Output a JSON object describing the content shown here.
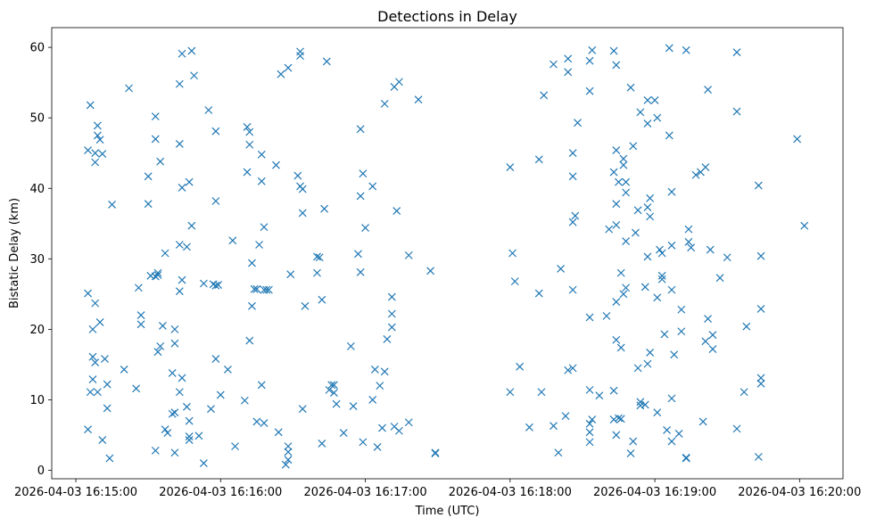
{
  "chart_data": {
    "type": "scatter",
    "title": "Detections in Delay",
    "xlabel": "Time (UTC)",
    "ylabel": "Bistatic Delay (km)",
    "x_format": "YYYY-MM-DD HH:MM:SS",
    "x_ticks": [
      "2026-04-03 16:15:00",
      "2026-04-03 16:16:00",
      "2026-04-03 16:17:00",
      "2026-04-03 16:18:00",
      "2026-04-03 16:19:00",
      "2026-04-03 16:20:00"
    ],
    "xlim": [
      "2026-04-03 16:14:50",
      "2026-04-03 16:20:18"
    ],
    "y_ticks": [
      0,
      10,
      20,
      30,
      40,
      50,
      60
    ],
    "ylim": [
      -1.2,
      62.8
    ],
    "grid": false,
    "legend": "none",
    "marker": "x",
    "color": "#1f77b4",
    "points": [
      [
        "2026-04-03 16:15:05",
        45.4
      ],
      [
        "2026-04-03 16:15:06",
        51.8
      ],
      [
        "2026-04-03 16:15:08",
        45.0
      ],
      [
        "2026-04-03 16:15:08",
        43.7
      ],
      [
        "2026-04-03 16:15:09",
        48.9
      ],
      [
        "2026-04-03 16:15:09",
        47.5
      ],
      [
        "2026-04-03 16:15:10",
        46.9
      ],
      [
        "2026-04-03 16:15:11",
        44.9
      ],
      [
        "2026-04-03 16:15:05",
        25.1
      ],
      [
        "2026-04-03 16:15:07",
        20.0
      ],
      [
        "2026-04-03 16:15:08",
        23.7
      ],
      [
        "2026-04-03 16:15:10",
        21.0
      ],
      [
        "2026-04-03 16:15:07",
        16.1
      ],
      [
        "2026-04-03 16:15:08",
        15.3
      ],
      [
        "2026-04-03 16:15:07",
        12.9
      ],
      [
        "2026-04-03 16:15:06",
        11.1
      ],
      [
        "2026-04-03 16:15:09",
        11.1
      ],
      [
        "2026-04-03 16:15:05",
        5.8
      ],
      [
        "2026-04-03 16:15:11",
        4.3
      ],
      [
        "2026-04-03 16:15:12",
        15.8
      ],
      [
        "2026-04-03 16:15:13",
        12.2
      ],
      [
        "2026-04-03 16:15:13",
        8.8
      ],
      [
        "2026-04-03 16:15:14",
        1.7
      ],
      [
        "2026-04-03 16:15:15",
        37.7
      ],
      [
        "2026-04-03 16:15:20",
        14.3
      ],
      [
        "2026-04-03 16:15:22",
        54.2
      ],
      [
        "2026-04-03 16:15:25",
        11.6
      ],
      [
        "2026-04-03 16:15:26",
        25.9
      ],
      [
        "2026-04-03 16:15:27",
        22.0
      ],
      [
        "2026-04-03 16:15:27",
        20.7
      ],
      [
        "2026-04-03 16:15:30",
        41.7
      ],
      [
        "2026-04-03 16:15:30",
        37.8
      ],
      [
        "2026-04-03 16:15:31",
        27.6
      ],
      [
        "2026-04-03 16:15:33",
        50.2
      ],
      [
        "2026-04-03 16:15:33",
        47.0
      ],
      [
        "2026-04-03 16:15:33",
        27.5
      ],
      [
        "2026-04-03 16:15:34",
        28.0
      ],
      [
        "2026-04-03 16:15:34",
        27.7
      ],
      [
        "2026-04-03 16:15:34",
        16.8
      ],
      [
        "2026-04-03 16:15:33",
        2.8
      ],
      [
        "2026-04-03 16:15:35",
        43.8
      ],
      [
        "2026-04-03 16:15:35",
        17.6
      ],
      [
        "2026-04-03 16:15:36",
        20.5
      ],
      [
        "2026-04-03 16:15:37",
        30.8
      ],
      [
        "2026-04-03 16:15:37",
        5.8
      ],
      [
        "2026-04-03 16:15:38",
        5.3
      ],
      [
        "2026-04-03 16:15:40",
        13.8
      ],
      [
        "2026-04-03 16:15:40",
        8.0
      ],
      [
        "2026-04-03 16:15:41",
        8.2
      ],
      [
        "2026-04-03 16:15:41",
        20.0
      ],
      [
        "2026-04-03 16:15:41",
        18.0
      ],
      [
        "2026-04-03 16:15:41",
        2.5
      ],
      [
        "2026-04-03 16:15:44",
        59.1
      ],
      [
        "2026-04-03 16:15:43",
        54.8
      ],
      [
        "2026-04-03 16:15:43",
        46.3
      ],
      [
        "2026-04-03 16:15:44",
        40.1
      ],
      [
        "2026-04-03 16:15:43",
        32.0
      ],
      [
        "2026-04-03 16:15:44",
        27.0
      ],
      [
        "2026-04-03 16:15:43",
        25.4
      ],
      [
        "2026-04-03 16:15:44",
        13.1
      ],
      [
        "2026-04-03 16:15:43",
        11.1
      ],
      [
        "2026-04-03 16:15:46",
        9.0
      ],
      [
        "2026-04-03 16:15:47",
        7.0
      ],
      [
        "2026-04-03 16:15:47",
        4.8
      ],
      [
        "2026-04-03 16:15:47",
        4.3
      ],
      [
        "2026-04-03 16:15:48",
        59.5
      ],
      [
        "2026-04-03 16:15:49",
        56.0
      ],
      [
        "2026-04-03 16:15:47",
        40.9
      ],
      [
        "2026-04-03 16:15:48",
        34.7
      ],
      [
        "2026-04-03 16:15:46",
        31.7
      ],
      [
        "2026-04-03 16:15:51",
        4.9
      ],
      [
        "2026-04-03 16:15:53",
        26.5
      ],
      [
        "2026-04-03 16:15:53",
        1.0
      ],
      [
        "2026-04-03 16:15:55",
        51.1
      ],
      [
        "2026-04-03 16:15:56",
        8.7
      ],
      [
        "2026-04-03 16:15:58",
        48.1
      ],
      [
        "2026-04-03 16:15:58",
        38.2
      ],
      [
        "2026-04-03 16:15:57",
        26.4
      ],
      [
        "2026-04-03 16:15:58",
        26.2
      ],
      [
        "2026-04-03 16:15:59",
        26.3
      ],
      [
        "2026-04-03 16:15:58",
        15.8
      ],
      [
        "2026-04-03 16:16:00",
        10.7
      ],
      [
        "2026-04-03 16:16:03",
        14.3
      ],
      [
        "2026-04-03 16:16:05",
        32.6
      ],
      [
        "2026-04-03 16:16:06",
        3.4
      ],
      [
        "2026-04-03 16:16:10",
        9.9
      ],
      [
        "2026-04-03 16:16:11",
        48.7
      ],
      [
        "2026-04-03 16:16:12",
        46.2
      ],
      [
        "2026-04-03 16:16:12",
        48.0
      ],
      [
        "2026-04-03 16:16:11",
        42.3
      ],
      [
        "2026-04-03 16:16:13",
        23.3
      ],
      [
        "2026-04-03 16:16:12",
        18.4
      ],
      [
        "2026-04-03 16:16:13",
        29.4
      ],
      [
        "2026-04-03 16:16:14",
        25.7
      ],
      [
        "2026-04-03 16:16:15",
        25.7
      ],
      [
        "2026-04-03 16:16:16",
        32.0
      ],
      [
        "2026-04-03 16:16:17",
        41.0
      ],
      [
        "2026-04-03 16:16:17",
        44.8
      ],
      [
        "2026-04-03 16:16:18",
        34.5
      ],
      [
        "2026-04-03 16:16:18",
        25.6
      ],
      [
        "2026-04-03 16:16:19",
        25.6
      ],
      [
        "2026-04-03 16:16:20",
        25.6
      ],
      [
        "2026-04-03 16:16:15",
        6.9
      ],
      [
        "2026-04-03 16:16:17",
        12.1
      ],
      [
        "2026-04-03 16:16:18",
        6.7
      ],
      [
        "2026-04-03 16:16:23",
        43.3
      ],
      [
        "2026-04-03 16:16:24",
        5.4
      ],
      [
        "2026-04-03 16:16:25",
        56.2
      ],
      [
        "2026-04-03 16:16:28",
        57.1
      ],
      [
        "2026-04-03 16:16:27",
        0.8
      ],
      [
        "2026-04-03 16:16:28",
        3.4
      ],
      [
        "2026-04-03 16:16:28",
        2.6
      ],
      [
        "2026-04-03 16:16:28",
        1.5
      ],
      [
        "2026-04-03 16:16:29",
        27.8
      ],
      [
        "2026-04-03 16:16:33",
        59.4
      ],
      [
        "2026-04-03 16:16:33",
        58.8
      ],
      [
        "2026-04-03 16:16:32",
        41.8
      ],
      [
        "2026-04-03 16:16:33",
        40.3
      ],
      [
        "2026-04-03 16:16:34",
        39.9
      ],
      [
        "2026-04-03 16:16:34",
        36.5
      ],
      [
        "2026-04-03 16:16:35",
        23.3
      ],
      [
        "2026-04-03 16:16:34",
        8.7
      ],
      [
        "2026-04-03 16:16:40",
        30.3
      ],
      [
        "2026-04-03 16:16:41",
        30.2
      ],
      [
        "2026-04-03 16:16:40",
        28.0
      ],
      [
        "2026-04-03 16:16:42",
        24.2
      ],
      [
        "2026-04-03 16:16:42",
        3.8
      ],
      [
        "2026-04-03 16:16:44",
        58.0
      ],
      [
        "2026-04-03 16:16:43",
        37.1
      ],
      [
        "2026-04-03 16:16:45",
        11.4
      ],
      [
        "2026-04-03 16:16:46",
        12.1
      ],
      [
        "2026-04-03 16:16:47",
        12.1
      ],
      [
        "2026-04-03 16:16:47",
        11.0
      ],
      [
        "2026-04-03 16:16:48",
        9.4
      ],
      [
        "2026-04-03 16:16:51",
        5.3
      ],
      [
        "2026-04-03 16:16:54",
        17.6
      ],
      [
        "2026-04-03 16:16:55",
        9.1
      ],
      [
        "2026-04-03 16:16:58",
        48.4
      ],
      [
        "2026-04-03 16:16:57",
        30.7
      ],
      [
        "2026-04-03 16:16:58",
        38.9
      ],
      [
        "2026-04-03 16:16:59",
        42.1
      ],
      [
        "2026-04-03 16:17:00",
        34.4
      ],
      [
        "2026-04-03 16:16:58",
        28.1
      ],
      [
        "2026-04-03 16:16:59",
        4.0
      ],
      [
        "2026-04-03 16:17:03",
        40.3
      ],
      [
        "2026-04-03 16:17:03",
        10.0
      ],
      [
        "2026-04-03 16:17:04",
        14.3
      ],
      [
        "2026-04-03 16:17:05",
        3.3
      ],
      [
        "2026-04-03 16:17:06",
        12.0
      ],
      [
        "2026-04-03 16:17:07",
        6.0
      ],
      [
        "2026-04-03 16:17:08",
        52.0
      ],
      [
        "2026-04-03 16:17:08",
        14.0
      ],
      [
        "2026-04-03 16:17:09",
        18.6
      ],
      [
        "2026-04-03 16:17:11",
        24.6
      ],
      [
        "2026-04-03 16:17:11",
        22.2
      ],
      [
        "2026-04-03 16:17:11",
        20.3
      ],
      [
        "2026-04-03 16:17:12",
        54.4
      ],
      [
        "2026-04-03 16:17:14",
        55.1
      ],
      [
        "2026-04-03 16:17:13",
        36.8
      ],
      [
        "2026-04-03 16:17:12",
        6.2
      ],
      [
        "2026-04-03 16:17:14",
        5.6
      ],
      [
        "2026-04-03 16:17:18",
        30.5
      ],
      [
        "2026-04-03 16:17:18",
        6.8
      ],
      [
        "2026-04-03 16:17:22",
        52.6
      ],
      [
        "2026-04-03 16:17:27",
        28.3
      ],
      [
        "2026-04-03 16:17:29",
        2.5
      ],
      [
        "2026-04-03 16:17:29",
        2.4
      ],
      [
        "2026-04-03 16:18:00",
        43.0
      ],
      [
        "2026-04-03 16:18:01",
        30.8
      ],
      [
        "2026-04-03 16:18:02",
        26.8
      ],
      [
        "2026-04-03 16:18:00",
        11.1
      ],
      [
        "2026-04-03 16:18:04",
        14.7
      ],
      [
        "2026-04-03 16:18:08",
        6.1
      ],
      [
        "2026-04-03 16:18:12",
        44.1
      ],
      [
        "2026-04-03 16:18:12",
        25.1
      ],
      [
        "2026-04-03 16:18:13",
        11.1
      ],
      [
        "2026-04-03 16:18:14",
        53.2
      ],
      [
        "2026-04-03 16:18:18",
        57.6
      ],
      [
        "2026-04-03 16:18:18",
        6.3
      ],
      [
        "2026-04-03 16:18:21",
        28.6
      ],
      [
        "2026-04-03 16:18:20",
        2.5
      ],
      [
        "2026-04-03 16:18:23",
        7.7
      ],
      [
        "2026-04-03 16:18:24",
        58.4
      ],
      [
        "2026-04-03 16:18:24",
        56.5
      ],
      [
        "2026-04-03 16:18:24",
        14.2
      ],
      [
        "2026-04-03 16:18:26",
        45.0
      ],
      [
        "2026-04-03 16:18:26",
        41.7
      ],
      [
        "2026-04-03 16:18:26",
        35.2
      ],
      [
        "2026-04-03 16:18:27",
        36.1
      ],
      [
        "2026-04-03 16:18:28",
        49.3
      ],
      [
        "2026-04-03 16:18:26",
        25.6
      ],
      [
        "2026-04-03 16:18:26",
        14.5
      ],
      [
        "2026-04-03 16:18:33",
        58.1
      ],
      [
        "2026-04-03 16:18:34",
        59.6
      ],
      [
        "2026-04-03 16:18:33",
        53.8
      ],
      [
        "2026-04-03 16:18:33",
        21.7
      ],
      [
        "2026-04-03 16:18:33",
        11.4
      ],
      [
        "2026-04-03 16:18:33",
        6.6
      ],
      [
        "2026-04-03 16:18:34",
        7.2
      ],
      [
        "2026-04-03 16:18:33",
        5.4
      ],
      [
        "2026-04-03 16:18:33",
        4.0
      ],
      [
        "2026-04-03 16:18:37",
        10.6
      ],
      [
        "2026-04-03 16:18:40",
        21.9
      ],
      [
        "2026-04-03 16:18:41",
        34.2
      ],
      [
        "2026-04-03 16:18:43",
        59.5
      ],
      [
        "2026-04-03 16:18:44",
        57.5
      ],
      [
        "2026-04-03 16:18:44",
        45.4
      ],
      [
        "2026-04-03 16:18:43",
        42.3
      ],
      [
        "2026-04-03 16:18:44",
        37.8
      ],
      [
        "2026-04-03 16:18:44",
        34.8
      ],
      [
        "2026-04-03 16:18:45",
        40.9
      ],
      [
        "2026-04-03 16:18:44",
        23.9
      ],
      [
        "2026-04-03 16:18:44",
        18.5
      ],
      [
        "2026-04-03 16:18:43",
        11.3
      ],
      [
        "2026-04-03 16:18:43",
        7.2
      ],
      [
        "2026-04-03 16:18:45",
        7.4
      ],
      [
        "2026-04-03 16:18:46",
        7.3
      ],
      [
        "2026-04-03 16:18:44",
        5.0
      ],
      [
        "2026-04-03 16:18:46",
        28.0
      ],
      [
        "2026-04-03 16:18:47",
        43.3
      ],
      [
        "2026-04-03 16:18:47",
        44.2
      ],
      [
        "2026-04-03 16:18:48",
        40.9
      ],
      [
        "2026-04-03 16:18:48",
        39.4
      ],
      [
        "2026-04-03 16:18:48",
        32.5
      ],
      [
        "2026-04-03 16:18:47",
        25.0
      ],
      [
        "2026-04-03 16:18:46",
        17.4
      ],
      [
        "2026-04-03 16:18:48",
        25.9
      ],
      [
        "2026-04-03 16:18:50",
        54.3
      ],
      [
        "2026-04-03 16:18:51",
        46.0
      ],
      [
        "2026-04-03 16:18:52",
        33.7
      ],
      [
        "2026-04-03 16:18:51",
        4.1
      ],
      [
        "2026-04-03 16:18:50",
        2.4
      ],
      [
        "2026-04-03 16:18:53",
        36.9
      ],
      [
        "2026-04-03 16:18:53",
        14.5
      ],
      [
        "2026-04-03 16:18:54",
        9.2
      ],
      [
        "2026-04-03 16:18:54",
        9.7
      ],
      [
        "2026-04-03 16:18:54",
        50.8
      ],
      [
        "2026-04-03 16:18:56",
        26.0
      ],
      [
        "2026-04-03 16:18:56",
        9.3
      ],
      [
        "2026-04-03 16:18:57",
        52.5
      ],
      [
        "2026-04-03 16:18:57",
        49.2
      ],
      [
        "2026-04-03 16:18:57",
        37.3
      ],
      [
        "2026-04-03 16:18:58",
        38.6
      ],
      [
        "2026-04-03 16:18:58",
        36.0
      ],
      [
        "2026-04-03 16:18:57",
        30.3
      ],
      [
        "2026-04-03 16:18:57",
        15.1
      ],
      [
        "2026-04-03 16:18:58",
        16.7
      ],
      [
        "2026-04-03 16:19:00",
        52.5
      ],
      [
        "2026-04-03 16:19:01",
        50.0
      ],
      [
        "2026-04-03 16:19:01",
        24.5
      ],
      [
        "2026-04-03 16:19:01",
        8.2
      ],
      [
        "2026-04-03 16:19:02",
        31.3
      ],
      [
        "2026-04-03 16:19:03",
        27.6
      ],
      [
        "2026-04-03 16:19:03",
        27.1
      ],
      [
        "2026-04-03 16:19:03",
        30.8
      ],
      [
        "2026-04-03 16:19:04",
        19.3
      ],
      [
        "2026-04-03 16:19:05",
        5.7
      ],
      [
        "2026-04-03 16:19:06",
        59.9
      ],
      [
        "2026-04-03 16:19:06",
        47.5
      ],
      [
        "2026-04-03 16:19:07",
        39.5
      ],
      [
        "2026-04-03 16:19:07",
        31.9
      ],
      [
        "2026-04-03 16:19:07",
        25.6
      ],
      [
        "2026-04-03 16:19:07",
        10.2
      ],
      [
        "2026-04-03 16:19:07",
        4.1
      ],
      [
        "2026-04-03 16:19:08",
        16.4
      ],
      [
        "2026-04-03 16:19:10",
        5.2
      ],
      [
        "2026-04-03 16:19:11",
        22.8
      ],
      [
        "2026-04-03 16:19:11",
        19.7
      ],
      [
        "2026-04-03 16:19:13",
        59.6
      ],
      [
        "2026-04-03 16:19:13",
        1.8
      ],
      [
        "2026-04-03 16:19:13",
        1.7
      ],
      [
        "2026-04-03 16:19:14",
        34.2
      ],
      [
        "2026-04-03 16:19:14",
        32.4
      ],
      [
        "2026-04-03 16:19:15",
        31.6
      ],
      [
        "2026-04-03 16:19:17",
        41.9
      ],
      [
        "2026-04-03 16:19:19",
        42.3
      ],
      [
        "2026-04-03 16:19:20",
        6.9
      ],
      [
        "2026-04-03 16:19:21",
        43.0
      ],
      [
        "2026-04-03 16:19:22",
        54.0
      ],
      [
        "2026-04-03 16:19:22",
        21.5
      ],
      [
        "2026-04-03 16:19:21",
        18.3
      ],
      [
        "2026-04-03 16:19:23",
        31.3
      ],
      [
        "2026-04-03 16:19:24",
        19.2
      ],
      [
        "2026-04-03 16:19:24",
        17.2
      ],
      [
        "2026-04-03 16:19:27",
        27.3
      ],
      [
        "2026-04-03 16:19:30",
        30.2
      ],
      [
        "2026-04-03 16:19:34",
        59.3
      ],
      [
        "2026-04-03 16:19:34",
        50.9
      ],
      [
        "2026-04-03 16:19:34",
        5.9
      ],
      [
        "2026-04-03 16:19:37",
        11.1
      ],
      [
        "2026-04-03 16:19:38",
        20.4
      ],
      [
        "2026-04-03 16:19:43",
        40.4
      ],
      [
        "2026-04-03 16:19:44",
        30.4
      ],
      [
        "2026-04-03 16:19:44",
        22.9
      ],
      [
        "2026-04-03 16:19:44",
        13.1
      ],
      [
        "2026-04-03 16:19:44",
        12.3
      ],
      [
        "2026-04-03 16:19:43",
        1.9
      ],
      [
        "2026-04-03 16:19:59",
        47.0
      ],
      [
        "2026-04-03 16:20:02",
        34.7
      ]
    ]
  }
}
